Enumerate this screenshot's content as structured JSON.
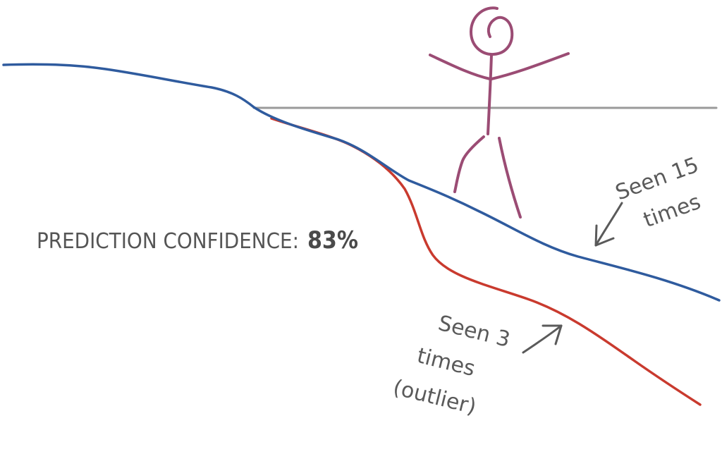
{
  "prediction": {
    "label": "PREDICTION CONFIDENCE:",
    "value": "83%"
  },
  "annotations": {
    "blue_line": {
      "line1": "Seen 15",
      "line2": "times"
    },
    "red_line": {
      "line1": "Seen 3",
      "line2": "times",
      "line3": "(outlier)"
    }
  },
  "colors": {
    "blue_line": "#2f5b9e",
    "red_line": "#c93a2e",
    "threshold_line": "#9a9a9a",
    "stick_figure": "#9b4c74",
    "text": "#555555"
  }
}
